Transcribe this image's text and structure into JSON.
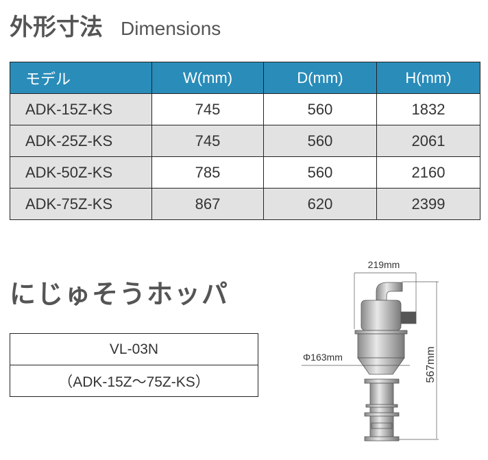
{
  "dimensions": {
    "title_jp": "外形寸法",
    "title_en": "Dimensions",
    "headers": [
      "モデル",
      "W(mm)",
      "D(mm)",
      "H(mm)"
    ],
    "rows": [
      [
        "ADK-15Z-KS",
        "745",
        "560",
        "1832"
      ],
      [
        "ADK-25Z-KS",
        "745",
        "560",
        "2061"
      ],
      [
        "ADK-50Z-KS",
        "785",
        "560",
        "2160"
      ],
      [
        "ADK-75Z-KS",
        "867",
        "620",
        "2399"
      ]
    ]
  },
  "hopper": {
    "title": "にじゅそうホッパ",
    "model": "VL-03N",
    "applicable": "（ADK-15Z～75Z-KS）",
    "drawing": {
      "width_label": "219mm",
      "diameter_label": "Φ163mm",
      "height_label": "567mm"
    }
  },
  "colors": {
    "header_bg": "#2a8cb9",
    "row_gray": "#e2e2e2"
  }
}
